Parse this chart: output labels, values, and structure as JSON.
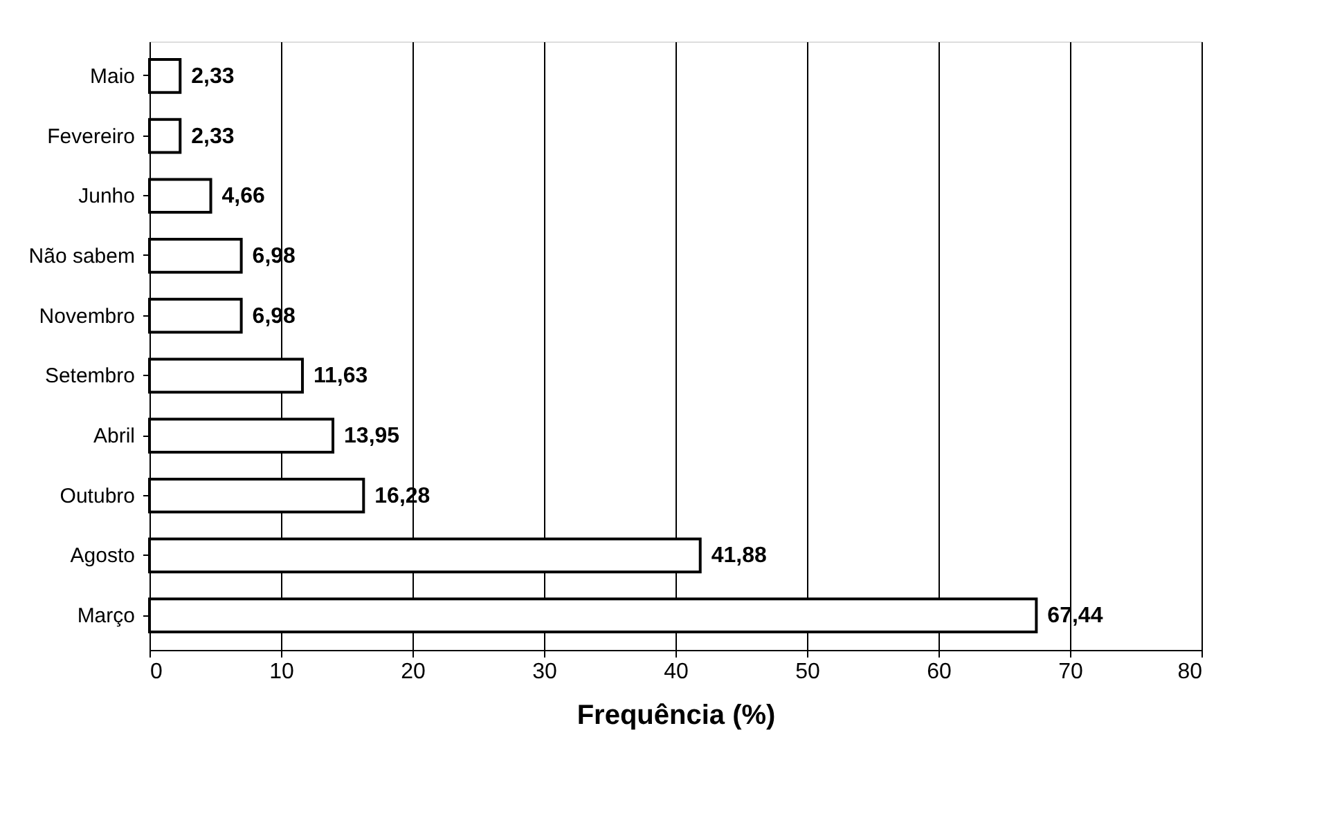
{
  "chart_data": {
    "type": "bar",
    "orientation": "horizontal",
    "xlabel": "Frequência (%)",
    "categories": [
      "Maio",
      "Fevereiro",
      "Junho",
      "Não sabem",
      "Novembro",
      "Setembro",
      "Abril",
      "Outubro",
      "Agosto",
      "Março"
    ],
    "values": [
      2.33,
      2.33,
      4.66,
      6.98,
      6.98,
      11.63,
      13.95,
      16.28,
      41.88,
      67.44
    ],
    "value_labels": [
      "2,33",
      "2,33",
      "4,66",
      "6,98",
      "6,98",
      "11,63",
      "13,95",
      "16,28",
      "41,88",
      "67,44"
    ],
    "color": "#ffffff",
    "xlim": [
      0,
      80
    ],
    "xticks": [
      0,
      10,
      20,
      30,
      40,
      50,
      60,
      70,
      80
    ],
    "grid": "x"
  }
}
